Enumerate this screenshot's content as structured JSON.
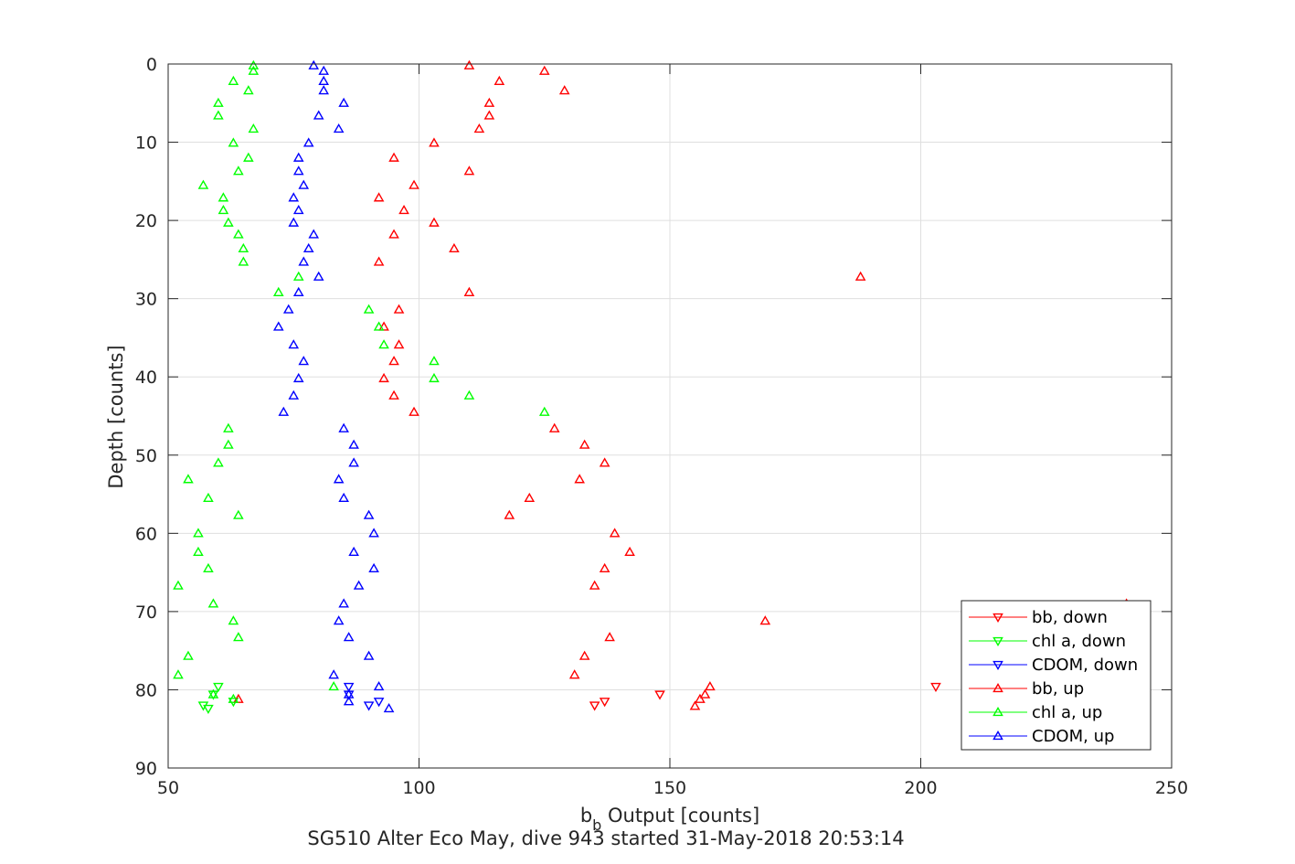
{
  "chart_data": {
    "type": "scatter",
    "title": "",
    "caption": "SG510 Alter Eco May, dive 943 started 31-May-2018 20:53:14",
    "xlabel_base": "b",
    "xlabel_sub": "b",
    "xlabel_rest": " Output [counts]",
    "ylabel": "Depth [counts]",
    "xlim": [
      50,
      250
    ],
    "ylim": [
      0,
      90
    ],
    "y_reversed": true,
    "grid": true,
    "legend_position": "bottom-right",
    "xticks": [
      50,
      100,
      150,
      200,
      250
    ],
    "yticks": [
      0,
      10,
      20,
      30,
      40,
      50,
      60,
      70,
      80,
      90
    ],
    "series": [
      {
        "name": "bb, down",
        "color": "#ff0000",
        "marker": "triangle-down",
        "points": [
          [
            203,
            79.6
          ],
          [
            148,
            80.6
          ],
          [
            137,
            81.5
          ],
          [
            135,
            82
          ]
        ]
      },
      {
        "name": "chl a, down",
        "color": "#00ff00",
        "marker": "triangle-down",
        "points": [
          [
            60,
            79.6
          ],
          [
            59,
            80.6
          ],
          [
            63,
            81.5
          ],
          [
            57,
            82
          ],
          [
            58,
            82.4
          ]
        ]
      },
      {
        "name": "CDOM, down",
        "color": "#0000ff",
        "marker": "triangle-down",
        "points": [
          [
            86,
            79.6
          ],
          [
            86,
            80.6
          ],
          [
            92,
            81.5
          ],
          [
            90,
            82
          ]
        ]
      },
      {
        "name": "bb, up",
        "color": "#ff0000",
        "marker": "triangle-up",
        "points": [
          [
            110,
            0.2
          ],
          [
            125,
            0.9
          ],
          [
            116,
            2.2
          ],
          [
            129,
            3.4
          ],
          [
            114,
            5
          ],
          [
            114,
            6.6
          ],
          [
            112,
            8.3
          ],
          [
            103,
            10.1
          ],
          [
            95,
            12
          ],
          [
            110,
            13.7
          ],
          [
            99,
            15.5
          ],
          [
            92,
            17.1
          ],
          [
            97,
            18.7
          ],
          [
            103,
            20.3
          ],
          [
            95,
            21.8
          ],
          [
            107,
            23.6
          ],
          [
            92,
            25.3
          ],
          [
            188,
            27.2
          ],
          [
            110,
            29.2
          ],
          [
            96,
            31.4
          ],
          [
            93,
            33.6
          ],
          [
            96,
            35.9
          ],
          [
            95,
            38
          ],
          [
            93,
            40.2
          ],
          [
            95,
            42.4
          ],
          [
            99,
            44.5
          ],
          [
            127,
            46.6
          ],
          [
            133,
            48.7
          ],
          [
            137,
            51
          ],
          [
            132,
            53.1
          ],
          [
            122,
            55.5
          ],
          [
            118,
            57.7
          ],
          [
            139,
            60
          ],
          [
            142,
            62.4
          ],
          [
            137,
            64.5
          ],
          [
            135,
            66.7
          ],
          [
            169,
            71.2
          ],
          [
            138,
            73.3
          ],
          [
            133,
            75.7
          ],
          [
            131,
            78.1
          ],
          [
            158,
            79.6
          ],
          [
            157,
            80.6
          ],
          [
            156,
            81.2
          ],
          [
            155,
            82.1
          ],
          [
            64,
            81.2
          ],
          [
            241,
            69
          ]
        ]
      },
      {
        "name": "chl a, up",
        "color": "#00ff00",
        "marker": "triangle-up",
        "points": [
          [
            67,
            0.2
          ],
          [
            67,
            0.9
          ],
          [
            63,
            2.2
          ],
          [
            66,
            3.4
          ],
          [
            60,
            5
          ],
          [
            60,
            6.6
          ],
          [
            67,
            8.3
          ],
          [
            63,
            10.1
          ],
          [
            66,
            12
          ],
          [
            64,
            13.7
          ],
          [
            57,
            15.5
          ],
          [
            61,
            17.1
          ],
          [
            61,
            18.7
          ],
          [
            62,
            20.3
          ],
          [
            64,
            21.8
          ],
          [
            65,
            23.6
          ],
          [
            65,
            25.3
          ],
          [
            76,
            27.2
          ],
          [
            72,
            29.2
          ],
          [
            90,
            31.4
          ],
          [
            92,
            33.6
          ],
          [
            93,
            35.9
          ],
          [
            103,
            38
          ],
          [
            103,
            40.2
          ],
          [
            110,
            42.4
          ],
          [
            125,
            44.5
          ],
          [
            62,
            46.6
          ],
          [
            62,
            48.7
          ],
          [
            60,
            51
          ],
          [
            54,
            53.1
          ],
          [
            58,
            55.5
          ],
          [
            64,
            57.7
          ],
          [
            56,
            60
          ],
          [
            56,
            62.4
          ],
          [
            58,
            64.5
          ],
          [
            52,
            66.7
          ],
          [
            59,
            69
          ],
          [
            63,
            71.2
          ],
          [
            64,
            73.3
          ],
          [
            54,
            75.7
          ],
          [
            52,
            78.1
          ],
          [
            83,
            79.6
          ],
          [
            59,
            80.6
          ],
          [
            63,
            81.2
          ]
        ]
      },
      {
        "name": "CDOM, up",
        "color": "#0000ff",
        "marker": "triangle-up",
        "points": [
          [
            79,
            0.2
          ],
          [
            81,
            0.9
          ],
          [
            81,
            2.2
          ],
          [
            81,
            3.4
          ],
          [
            85,
            5
          ],
          [
            80,
            6.6
          ],
          [
            84,
            8.3
          ],
          [
            78,
            10.1
          ],
          [
            76,
            12
          ],
          [
            76,
            13.7
          ],
          [
            77,
            15.5
          ],
          [
            75,
            17.1
          ],
          [
            76,
            18.7
          ],
          [
            75,
            20.3
          ],
          [
            79,
            21.8
          ],
          [
            78,
            23.6
          ],
          [
            77,
            25.3
          ],
          [
            80,
            27.2
          ],
          [
            76,
            29.2
          ],
          [
            74,
            31.4
          ],
          [
            72,
            33.6
          ],
          [
            75,
            35.9
          ],
          [
            77,
            38
          ],
          [
            76,
            40.2
          ],
          [
            75,
            42.4
          ],
          [
            73,
            44.5
          ],
          [
            85,
            46.6
          ],
          [
            87,
            48.7
          ],
          [
            87,
            51
          ],
          [
            84,
            53.1
          ],
          [
            85,
            55.5
          ],
          [
            90,
            57.7
          ],
          [
            91,
            60
          ],
          [
            87,
            62.4
          ],
          [
            91,
            64.5
          ],
          [
            88,
            66.7
          ],
          [
            85,
            69
          ],
          [
            84,
            71.2
          ],
          [
            86,
            73.3
          ],
          [
            90,
            75.7
          ],
          [
            83,
            78.1
          ],
          [
            92,
            79.6
          ],
          [
            86,
            80.6
          ],
          [
            86,
            81.5
          ],
          [
            94,
            82.4
          ]
        ]
      }
    ]
  }
}
